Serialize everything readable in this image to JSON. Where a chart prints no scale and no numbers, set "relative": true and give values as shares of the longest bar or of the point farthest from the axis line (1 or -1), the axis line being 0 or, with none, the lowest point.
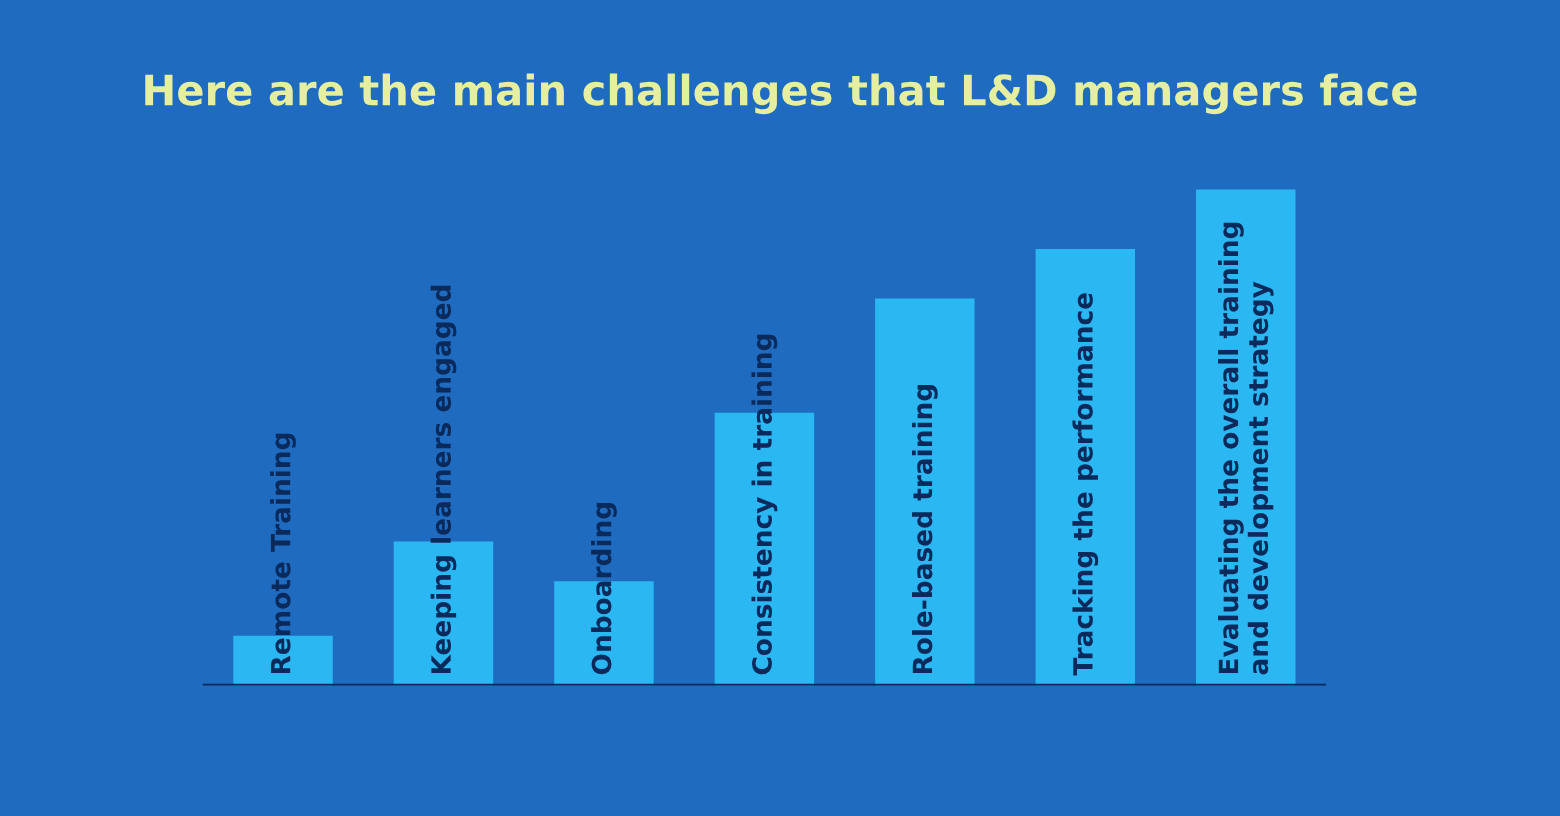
{
  "chart_data": {
    "type": "bar",
    "title": "Here are the main challenges that L&D managers face",
    "categories": [
      "Remote Training",
      "Keeping learners engaged",
      "Onboarding",
      "Consistency in training",
      "Role-based training",
      "Tracking the performance",
      "Evaluating the overall training\nand development strategy"
    ],
    "values": [
      0.1,
      0.29,
      0.21,
      0.55,
      0.78,
      0.88,
      1.0
    ],
    "color": "#2bb8f2",
    "relative": true
  }
}
